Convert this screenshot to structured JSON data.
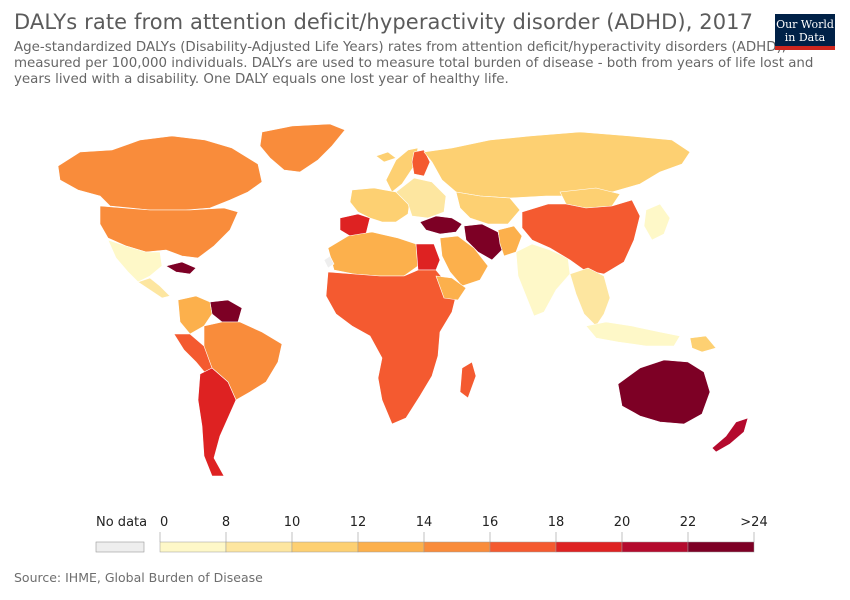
{
  "header": {
    "title": "DALYs rate from attention deficit/hyperactivity disorder (ADHD), 2017",
    "subtitle": "Age-standardized DALYs (Disability-Adjusted Life Years) rates from attention deficit/hyperactivity disorders (ADHD), measured per 100,000 individuals. DALYs are used to measure total burden of disease - both from years of life lost and years lived with a disability. One DALY equals one lost year of healthy life."
  },
  "logo": {
    "line1": "Our World",
    "line2": "in Data",
    "bg": "#002147",
    "accent": "#ce261e"
  },
  "legend": {
    "no_data_label": "No data",
    "no_data_color": "#eeeeee",
    "ticks": [
      "0",
      "8",
      "10",
      "12",
      "14",
      "16",
      "18",
      "20",
      "22",
      ">24"
    ],
    "bins": [
      {
        "from": 0,
        "to": 8,
        "color": "#fef8c8"
      },
      {
        "from": 8,
        "to": 10,
        "color": "#fde6a0"
      },
      {
        "from": 10,
        "to": 12,
        "color": "#fdd072"
      },
      {
        "from": 12,
        "to": 14,
        "color": "#fcb04c"
      },
      {
        "from": 14,
        "to": 16,
        "color": "#f98c3b"
      },
      {
        "from": 16,
        "to": 18,
        "color": "#f45a30"
      },
      {
        "from": 18,
        "to": 20,
        "color": "#de2222"
      },
      {
        "from": 20,
        "to": 22,
        "color": "#b40a2d"
      },
      {
        "from": 22,
        "to": 24,
        "color": "#7d0025"
      }
    ]
  },
  "map": {
    "regions": [
      {
        "name": "Canada",
        "color": "#f98c3b"
      },
      {
        "name": "United States",
        "color": "#f98c3b"
      },
      {
        "name": "Greenland",
        "color": "#f98c3b"
      },
      {
        "name": "Mexico",
        "color": "#fef8c8"
      },
      {
        "name": "Caribbean",
        "color": "#7d0025"
      },
      {
        "name": "Central America",
        "color": "#fde6a0"
      },
      {
        "name": "Venezuela & Guianas",
        "color": "#7d0025"
      },
      {
        "name": "Colombia",
        "color": "#fcb04c"
      },
      {
        "name": "Brazil",
        "color": "#f98c3b"
      },
      {
        "name": "Peru & Bolivia",
        "color": "#f45a30"
      },
      {
        "name": "Argentina & Chile",
        "color": "#de2222"
      },
      {
        "name": "Iceland",
        "color": "#fdd072"
      },
      {
        "name": "Scandinavia",
        "color": "#fdd072"
      },
      {
        "name": "Finland",
        "color": "#f45a30"
      },
      {
        "name": "Western Europe",
        "color": "#fdd072"
      },
      {
        "name": "Iberia",
        "color": "#de2222"
      },
      {
        "name": "Eastern Europe",
        "color": "#fde6a0"
      },
      {
        "name": "Russia",
        "color": "#fdd072"
      },
      {
        "name": "Turkey & Levant",
        "color": "#7d0025"
      },
      {
        "name": "Iran",
        "color": "#7d0025"
      },
      {
        "name": "Central Asia",
        "color": "#fdd072"
      },
      {
        "name": "Afghanistan & Pakistan",
        "color": "#fcb04c"
      },
      {
        "name": "Arabian Peninsula",
        "color": "#fcb04c"
      },
      {
        "name": "North Africa",
        "color": "#fcb04c"
      },
      {
        "name": "Egypt",
        "color": "#de2222"
      },
      {
        "name": "Sub-Saharan Africa",
        "color": "#f45a30"
      },
      {
        "name": "Ethiopia",
        "color": "#fcb04c"
      },
      {
        "name": "Madagascar",
        "color": "#f45a30"
      },
      {
        "name": "India",
        "color": "#fef8c8"
      },
      {
        "name": "China",
        "color": "#f45a30"
      },
      {
        "name": "Mongolia",
        "color": "#fdd072"
      },
      {
        "name": "Japan & Korea",
        "color": "#fef8c8"
      },
      {
        "name": "Southeast Asia",
        "color": "#fde6a0"
      },
      {
        "name": "Indonesia",
        "color": "#fef8c8"
      },
      {
        "name": "Papua New Guinea",
        "color": "#fdd072"
      },
      {
        "name": "Australia",
        "color": "#7d0025"
      },
      {
        "name": "New Zealand",
        "color": "#b40a2d"
      }
    ]
  },
  "source": "Source: IHME, Global Burden of Disease"
}
